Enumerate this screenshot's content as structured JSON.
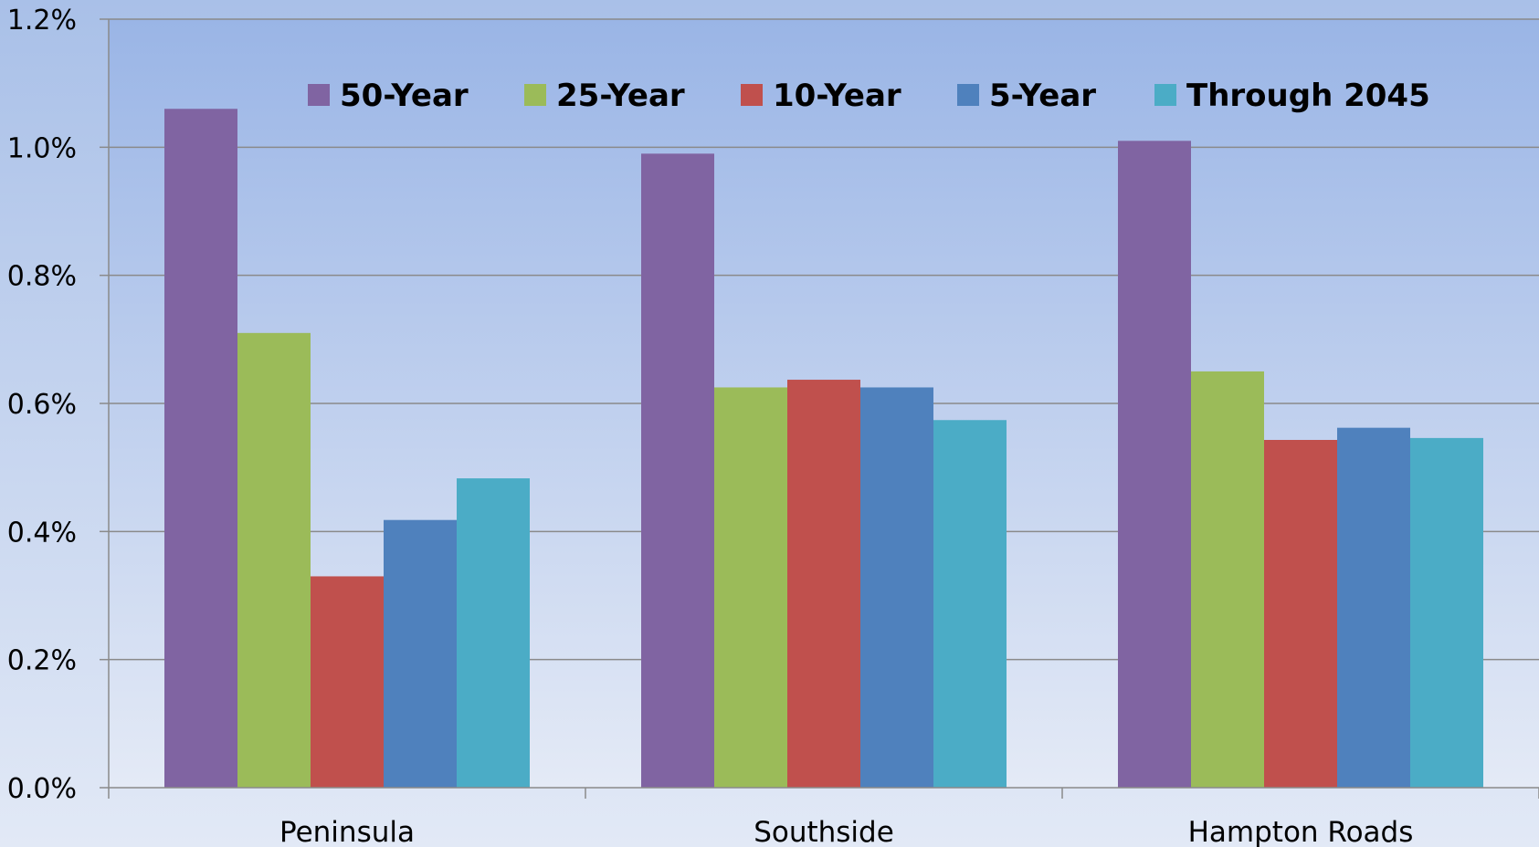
{
  "chart_data": {
    "type": "bar",
    "categories": [
      "Peninsula",
      "Southside",
      "Hampton Roads"
    ],
    "series": [
      {
        "name": "50-Year",
        "color": "#8064a2",
        "values": [
          1.06,
          0.99,
          1.01
        ]
      },
      {
        "name": "25-Year",
        "color": "#9bbb59",
        "values": [
          0.71,
          0.625,
          0.65
        ]
      },
      {
        "name": "10-Year",
        "color": "#c0504d",
        "values": [
          0.33,
          0.637,
          0.543
        ]
      },
      {
        "name": "5-Year",
        "color": "#4f81bd",
        "values": [
          0.418,
          0.625,
          0.562
        ]
      },
      {
        "name": "Through 2045",
        "color": "#4bacc6",
        "values": [
          0.483,
          0.574,
          0.546
        ]
      }
    ],
    "yticks": [
      "0.0%",
      "0.2%",
      "0.4%",
      "0.6%",
      "0.8%",
      "1.0%",
      "1.2%"
    ],
    "ylim": [
      0,
      1.2
    ],
    "grid": true,
    "legend_position": "top"
  }
}
